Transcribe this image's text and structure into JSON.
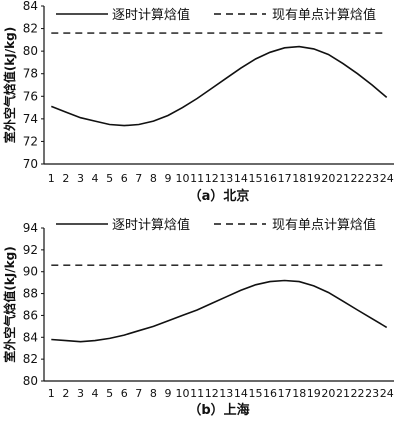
{
  "chart_data": [
    {
      "type": "line",
      "caption": "（a）北京",
      "ylabel": "室外空气焓值(kJ/kg)",
      "xlabel": "",
      "categories": [
        "1",
        "2",
        "3",
        "4",
        "5",
        "6",
        "7",
        "8",
        "9",
        "10",
        "11",
        "12",
        "13",
        "14",
        "15",
        "16",
        "17",
        "18",
        "19",
        "20",
        "21",
        "22",
        "23",
        "24"
      ],
      "ylim": [
        70,
        84
      ],
      "yticks": [
        70,
        72,
        74,
        76,
        78,
        80,
        82,
        84
      ],
      "legend_position": "top",
      "grid": false,
      "series": [
        {
          "name": "逐时计算焓值",
          "style": "solid",
          "values": [
            75.1,
            74.6,
            74.1,
            73.8,
            73.5,
            73.4,
            73.5,
            73.8,
            74.3,
            75.0,
            75.8,
            76.7,
            77.6,
            78.5,
            79.3,
            79.9,
            80.3,
            80.4,
            80.2,
            79.7,
            78.9,
            78.0,
            77.0,
            75.9
          ]
        },
        {
          "name": "现有单点计算焓值",
          "style": "dashed",
          "values": [
            81.6,
            81.6,
            81.6,
            81.6,
            81.6,
            81.6,
            81.6,
            81.6,
            81.6,
            81.6,
            81.6,
            81.6,
            81.6,
            81.6,
            81.6,
            81.6,
            81.6,
            81.6,
            81.6,
            81.6,
            81.6,
            81.6,
            81.6,
            81.6
          ]
        }
      ]
    },
    {
      "type": "line",
      "caption": "（b）上海",
      "ylabel": "室外空气焓值(kJ/kg)",
      "xlabel": "",
      "categories": [
        "1",
        "2",
        "3",
        "4",
        "5",
        "6",
        "7",
        "8",
        "9",
        "10",
        "11",
        "12",
        "13",
        "14",
        "15",
        "16",
        "17",
        "18",
        "19",
        "20",
        "21",
        "22",
        "23",
        "24"
      ],
      "ylim": [
        80,
        94
      ],
      "yticks": [
        80,
        82,
        84,
        86,
        88,
        90,
        92,
        94
      ],
      "legend_position": "top",
      "grid": false,
      "series": [
        {
          "name": "逐时计算焓值",
          "style": "solid",
          "values": [
            83.8,
            83.7,
            83.6,
            83.7,
            83.9,
            84.2,
            84.6,
            85.0,
            85.5,
            86.0,
            86.5,
            87.1,
            87.7,
            88.3,
            88.8,
            89.1,
            89.2,
            89.1,
            88.7,
            88.1,
            87.3,
            86.5,
            85.7,
            84.9
          ]
        },
        {
          "name": "现有单点计算焓值",
          "style": "dashed",
          "values": [
            90.6,
            90.6,
            90.6,
            90.6,
            90.6,
            90.6,
            90.6,
            90.6,
            90.6,
            90.6,
            90.6,
            90.6,
            90.6,
            90.6,
            90.6,
            90.6,
            90.6,
            90.6,
            90.6,
            90.6,
            90.6,
            90.6,
            90.6,
            90.6
          ]
        }
      ]
    }
  ]
}
